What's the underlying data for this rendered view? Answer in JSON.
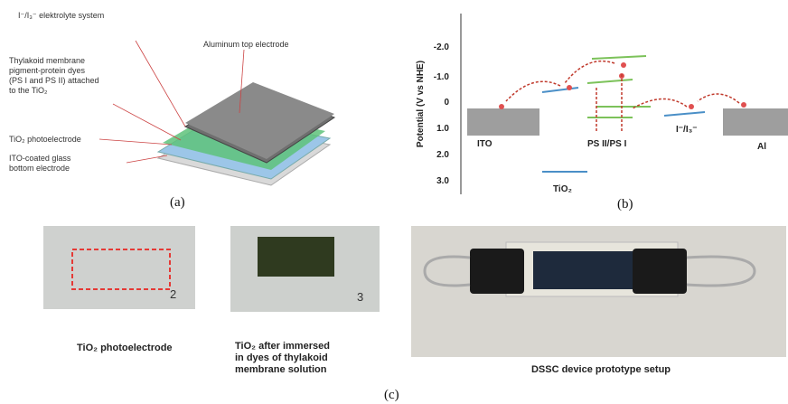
{
  "panel_a": {
    "electrolyte": "I⁻/I₃⁻ elektrolyte system",
    "top_electrode": "Aluminum top electrode",
    "dyes": [
      "Thylakoid membrane",
      "pigment-protein dyes",
      "(PS I and PS II) attached",
      "to the TiO₂"
    ],
    "photoelectrode": "TiO₂ photoelectrode",
    "glass": [
      "ITO-coated glass",
      "bottom electrode"
    ],
    "caption": "(a)"
  },
  "panel_b": {
    "axis_label": "Potential (V vs NHE)",
    "ticks": [
      "-2.0",
      "-1.0",
      "0",
      "1.0",
      "2.0",
      "3.0"
    ],
    "ito": "ITO",
    "ps": "PS II/PS I",
    "redox": "I⁻/I₃⁻",
    "al": "Al",
    "tio2": "TiO₂",
    "caption": "(b)"
  },
  "panel_c": {
    "slide_1_mark": "2",
    "slide_2_mark": "3",
    "caption_1": "TiO₂ photoelectrode",
    "caption_2": [
      "TiO₂ after immersed",
      "in dyes of thylakoid",
      "membrane solution"
    ],
    "caption_3": "DSSC device prototype setup",
    "caption": "(c)"
  }
}
